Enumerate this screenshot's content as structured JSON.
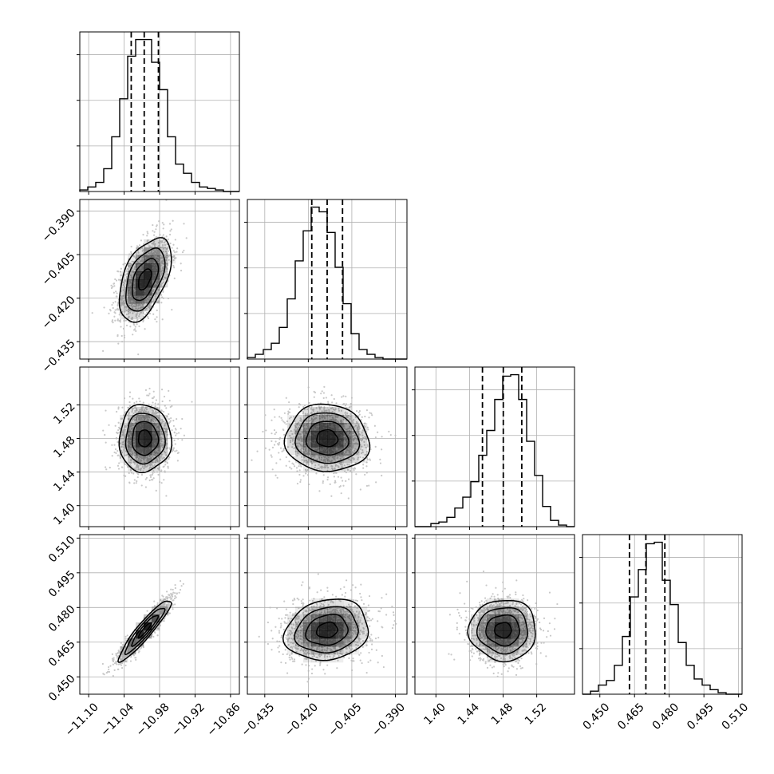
{
  "chart_data": {
    "type": "corner",
    "grid": true,
    "parameters": [
      {
        "range": [
          -11.115,
          -10.845
        ],
        "ticks": [
          -11.1,
          -11.04,
          -10.98,
          -10.92,
          -10.86
        ],
        "tick_labels": [
          "−11.10",
          "−11.04",
          "−10.98",
          "−10.92",
          "−10.86"
        ],
        "quantiles": [
          -11.028,
          -11.006,
          -10.982
        ]
      },
      {
        "range": [
          -0.441,
          -0.386
        ],
        "ticks": [
          -0.435,
          -0.42,
          -0.405,
          -0.39
        ],
        "tick_labels": [
          "−0.435",
          "−0.420",
          "−0.405",
          "−0.390"
        ],
        "quantiles": [
          -0.4188,
          -0.4135,
          -0.4082
        ]
      },
      {
        "range": [
          1.375,
          1.565
        ],
        "ticks": [
          1.4,
          1.44,
          1.48,
          1.52
        ],
        "tick_labels": [
          "1.40",
          "1.44",
          "1.48",
          "1.52"
        ],
        "quantiles": [
          1.4554,
          1.4802,
          1.5022
        ]
      },
      {
        "range": [
          0.4425,
          0.5115
        ],
        "ticks": [
          0.45,
          0.465,
          0.48,
          0.495,
          0.51
        ],
        "tick_labels": [
          "0.450",
          "0.465",
          "0.480",
          "0.495",
          "0.510"
        ],
        "quantiles": [
          0.4628,
          0.4699,
          0.4781
        ]
      }
    ],
    "histograms": [
      {
        "param": 0,
        "edges_range": [
          -11.115,
          -10.845
        ],
        "counts": [
          1,
          3,
          6,
          15,
          36,
          61,
          89,
          100,
          100,
          85,
          67,
          36,
          18,
          12,
          6,
          3,
          2,
          1,
          0,
          0
        ]
      },
      {
        "param": 1,
        "edges_range": [
          -0.441,
          -0.386
        ],
        "counts": [
          1,
          3,
          6,
          10,
          20,
          38,
          62,
          81,
          96,
          93,
          80,
          58,
          35,
          16,
          6,
          3,
          1,
          0,
          0,
          0
        ]
      },
      {
        "param": 2,
        "edges_range": [
          1.375,
          1.565
        ],
        "counts": [
          0,
          0,
          2,
          3,
          6,
          12,
          19,
          29,
          46,
          62,
          82,
          97,
          98,
          82,
          55,
          33,
          13,
          4,
          1,
          0
        ]
      },
      {
        "param": 3,
        "edges_range": [
          0.4425,
          0.5115
        ],
        "counts": [
          0,
          2,
          6,
          9,
          19,
          38,
          64,
          82,
          99,
          100,
          75,
          59,
          34,
          19,
          10,
          6,
          3,
          1,
          0,
          0
        ]
      }
    ],
    "pairs": [
      {
        "x_param": 0,
        "y_param": 1,
        "mean": [
          -11.005,
          -0.4135
        ],
        "sd": [
          0.022,
          0.0072
        ],
        "corr": 0.5
      },
      {
        "x_param": 0,
        "y_param": 2,
        "mean": [
          -11.005,
          1.48
        ],
        "sd": [
          0.022,
          0.02
        ],
        "corr": 0.0
      },
      {
        "x_param": 1,
        "y_param": 2,
        "mean": [
          -0.4135,
          1.48
        ],
        "sd": [
          0.0072,
          0.02
        ],
        "corr": -0.05
      },
      {
        "x_param": 0,
        "y_param": 3,
        "mean": [
          -11.005,
          0.4702
        ],
        "sd": [
          0.022,
          0.0066
        ],
        "corr": 0.93
      },
      {
        "x_param": 1,
        "y_param": 3,
        "mean": [
          -0.4135,
          0.4702
        ],
        "sd": [
          0.0072,
          0.0066
        ],
        "corr": 0.15
      },
      {
        "x_param": 2,
        "y_param": 3,
        "mean": [
          1.48,
          0.4702
        ],
        "sd": [
          0.02,
          0.0066
        ],
        "corr": 0.0
      }
    ],
    "contour_levels_sigma": [
      0.5,
      1.0,
      1.5,
      2.0
    ],
    "colors": {
      "line": "#000000",
      "grid": "#b0b0b0",
      "scatter": "#bbbbbb",
      "density": "#000000"
    }
  }
}
